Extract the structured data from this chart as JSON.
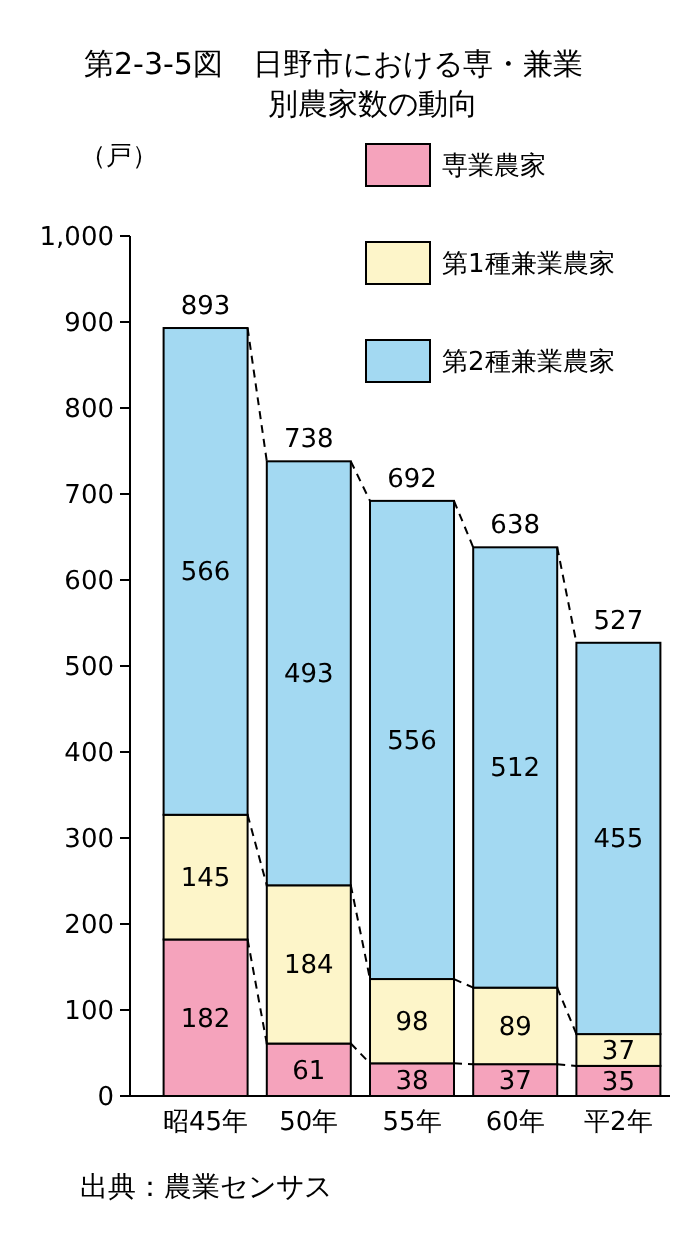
{
  "chart_data": {
    "type": "bar",
    "title": "第2-3-5図　日野市における専・兼業別農家数の動向",
    "ylabel": "（戸）",
    "categories": [
      "昭45年",
      "50年",
      "55年",
      "60年",
      "平2年"
    ],
    "stacked": true,
    "series": [
      {
        "name": "専業農家",
        "color": "#f5a3bc",
        "values": [
          182,
          61,
          38,
          37,
          35
        ]
      },
      {
        "name": "第1種兼業農家",
        "color": "#fdf5c9",
        "values": [
          145,
          184,
          98,
          89,
          37
        ]
      },
      {
        "name": "第2種兼業農家",
        "color": "#a3d9f2",
        "values": [
          566,
          493,
          556,
          512,
          455
        ]
      }
    ],
    "totals": [
      "893",
      "738",
      "692",
      "638",
      "527"
    ],
    "data_labels": true,
    "legend": "top right",
    "grid": false,
    "ylim": [
      0,
      1000
    ],
    "yticks": [
      0,
      100,
      200,
      300,
      400,
      500,
      600,
      700,
      800,
      900,
      {
        "value": 1000,
        "label": "1,000"
      }
    ],
    "annotations": [
      "出典：農業センサス"
    ]
  }
}
